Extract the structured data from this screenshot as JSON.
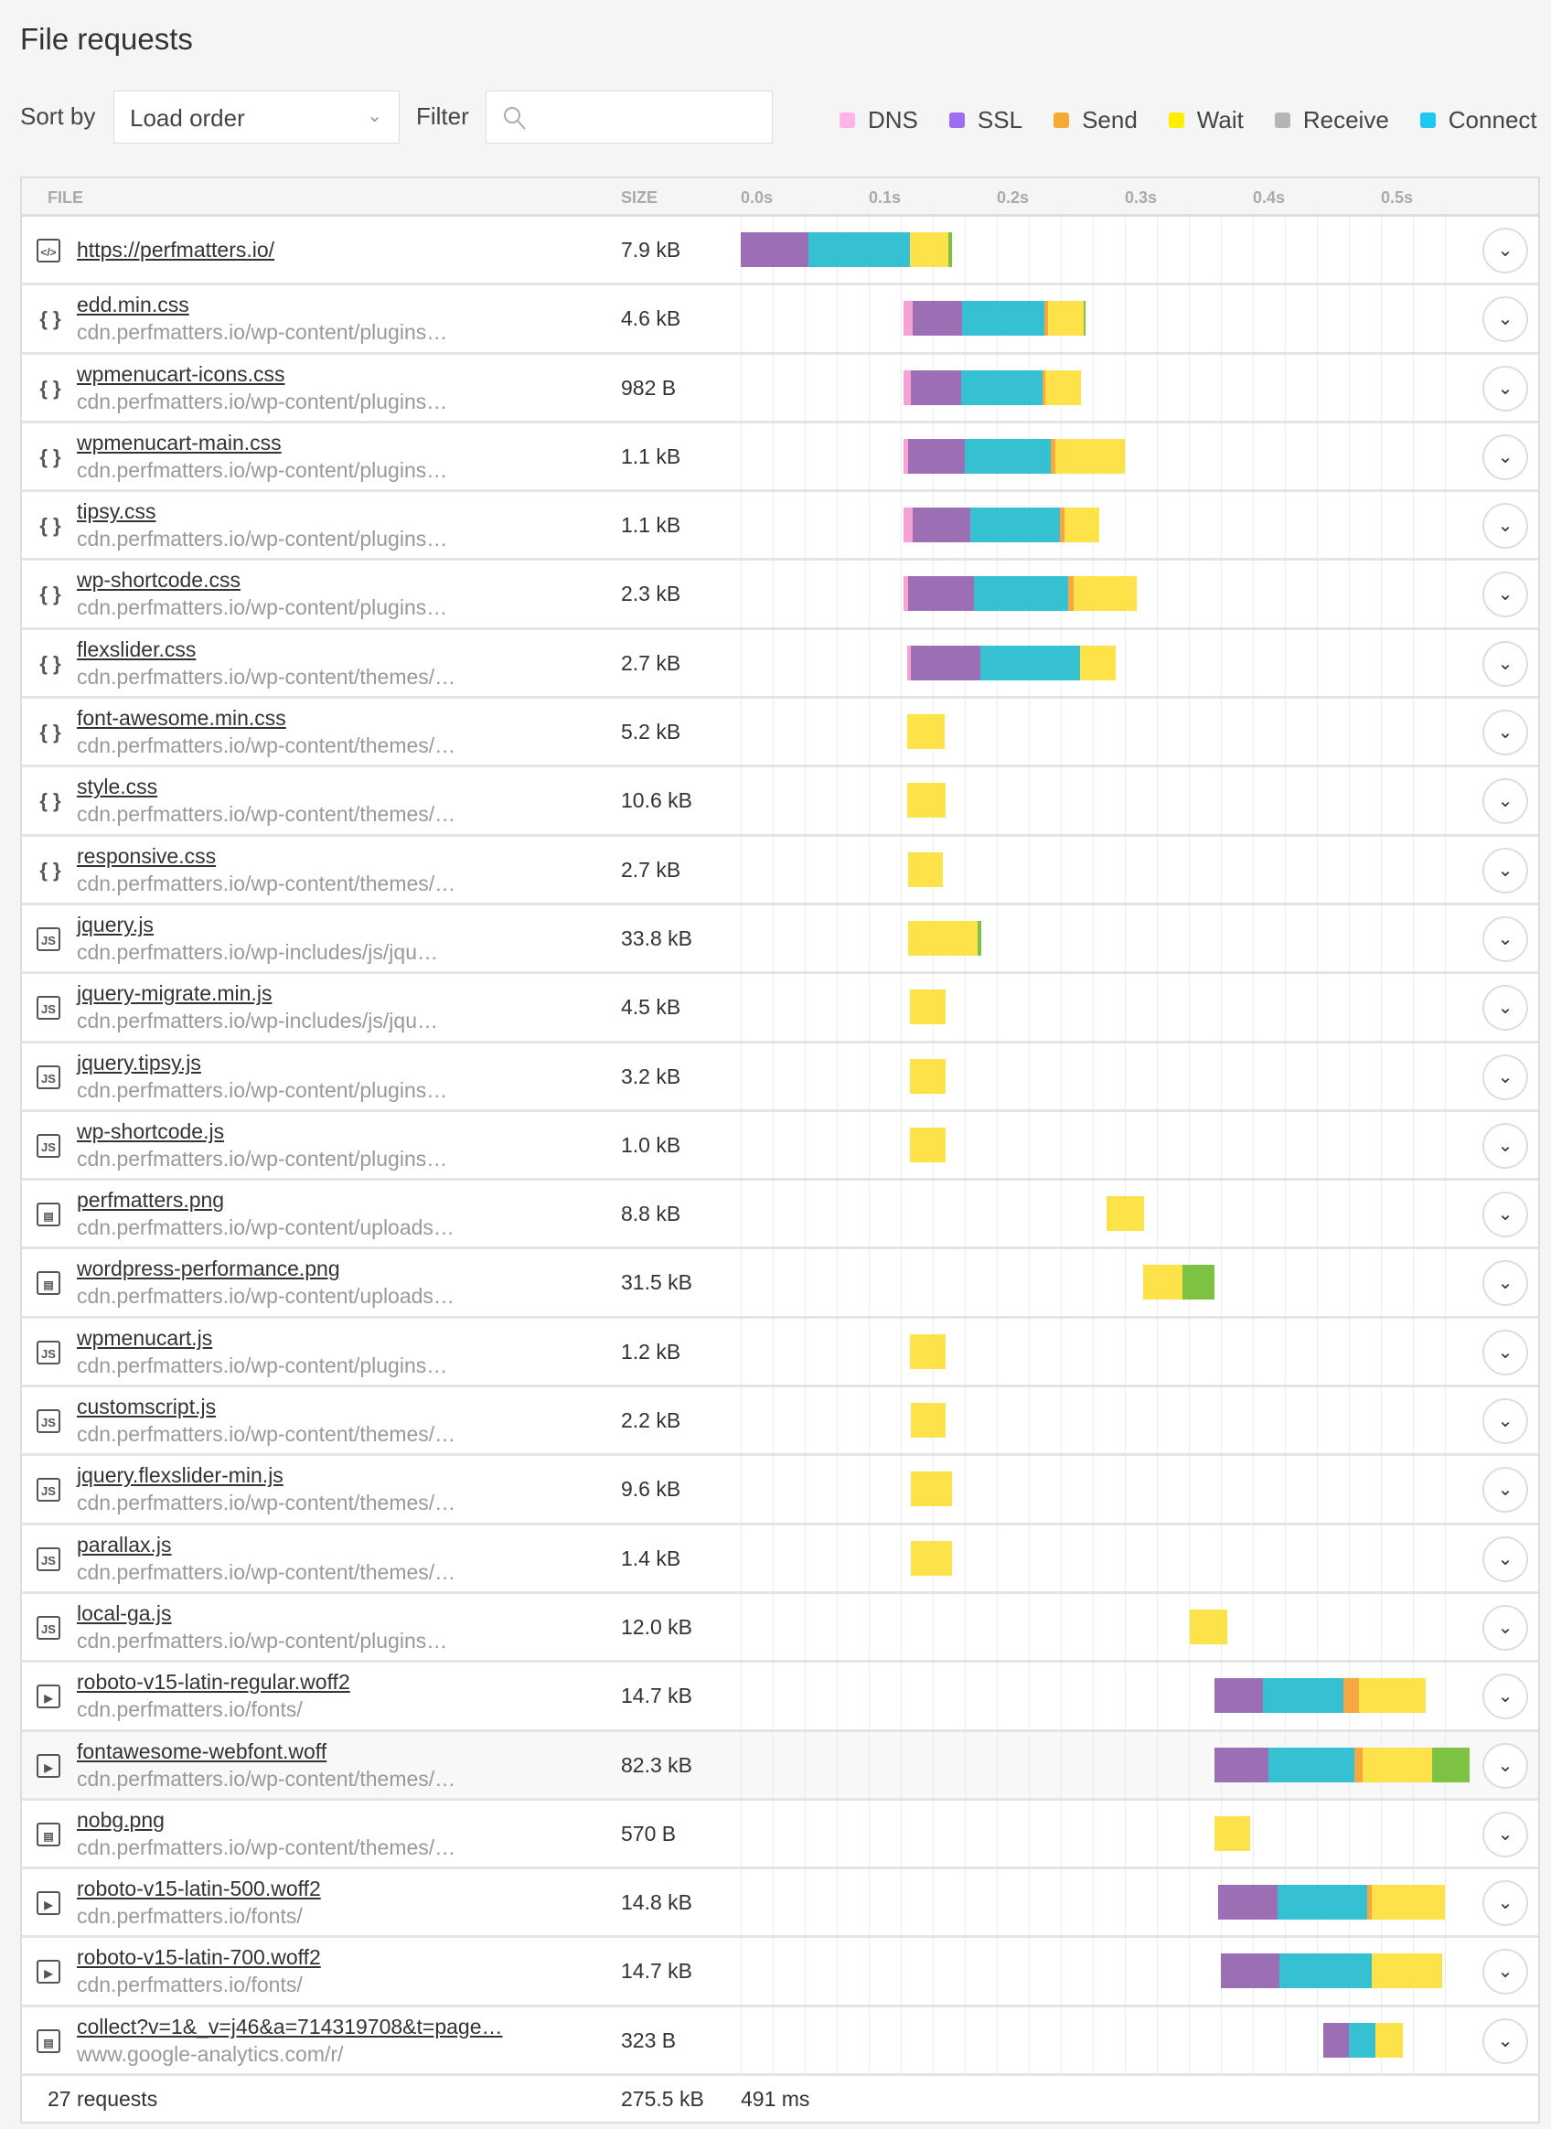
{
  "title": "File requests",
  "controls": {
    "sort_label": "Sort by",
    "sort_value": "Load order",
    "filter_label": "Filter",
    "filter_value": "",
    "filter_placeholder": ""
  },
  "legend": [
    {
      "label": "DNS",
      "color": "#ffb3e6"
    },
    {
      "label": "SSL",
      "color": "#9c6ff0"
    },
    {
      "label": "Send",
      "color": "#f7a935"
    },
    {
      "label": "Wait",
      "color": "#ffee00"
    },
    {
      "label": "Receive",
      "color": "#b5b5b5"
    },
    {
      "label": "Connect",
      "color": "#1ec8f0"
    }
  ],
  "bar_colors": {
    "dns": "#f5a3d4",
    "ssl": "#9c6fb4",
    "connect": "#35c1d1",
    "send": "#f5a742",
    "wait": "#fde24a",
    "receive": "#7dc242"
  },
  "columns": {
    "file": "FILE",
    "size": "SIZE"
  },
  "chart_data": {
    "type": "bar",
    "orientation": "horizontal-waterfall",
    "x_ticks": [
      "0.0s",
      "0.1s",
      "0.2s",
      "0.3s",
      "0.4s",
      "0.5s"
    ],
    "xlim": [
      0,
      0.574
    ],
    "grid": true
  },
  "rows": [
    {
      "name": "https://perfmatters.io/",
      "host": "",
      "size": "7.9 kB",
      "type": "html",
      "segments": [
        [
          "ssl",
          0,
          0.053
        ],
        [
          "connect",
          0.053,
          0.132
        ],
        [
          "wait",
          0.132,
          0.162
        ],
        [
          "receive",
          0.162,
          0.165
        ]
      ]
    },
    {
      "name": "edd.min.css",
      "host": "cdn.perfmatters.io/wp-content/plugins…",
      "size": "4.6 kB",
      "type": "css",
      "segments": [
        [
          "dns",
          0.127,
          0.134
        ],
        [
          "ssl",
          0.134,
          0.173
        ],
        [
          "connect",
          0.173,
          0.237
        ],
        [
          "send",
          0.237,
          0.24
        ],
        [
          "wait",
          0.24,
          0.268
        ],
        [
          "receive",
          0.268,
          0.269
        ]
      ]
    },
    {
      "name": "wpmenucart-icons.css",
      "host": "cdn.perfmatters.io/wp-content/plugins…",
      "size": "982 B",
      "type": "css",
      "segments": [
        [
          "dns",
          0.127,
          0.133
        ],
        [
          "ssl",
          0.133,
          0.172
        ],
        [
          "connect",
          0.172,
          0.236
        ],
        [
          "send",
          0.236,
          0.238
        ],
        [
          "wait",
          0.238,
          0.266
        ]
      ]
    },
    {
      "name": "wpmenucart-main.css",
      "host": "cdn.perfmatters.io/wp-content/plugins…",
      "size": "1.1 kB",
      "type": "css",
      "segments": [
        [
          "dns",
          0.127,
          0.131
        ],
        [
          "ssl",
          0.131,
          0.175
        ],
        [
          "connect",
          0.175,
          0.242
        ],
        [
          "send",
          0.242,
          0.246
        ],
        [
          "wait",
          0.246,
          0.3
        ]
      ]
    },
    {
      "name": "tipsy.css",
      "host": "cdn.perfmatters.io/wp-content/plugins…",
      "size": "1.1 kB",
      "type": "css",
      "segments": [
        [
          "dns",
          0.127,
          0.134
        ],
        [
          "ssl",
          0.134,
          0.179
        ],
        [
          "connect",
          0.179,
          0.249
        ],
        [
          "send",
          0.249,
          0.253
        ],
        [
          "wait",
          0.253,
          0.28
        ]
      ]
    },
    {
      "name": "wp-shortcode.css",
      "host": "cdn.perfmatters.io/wp-content/plugins…",
      "size": "2.3 kB",
      "type": "css",
      "segments": [
        [
          "dns",
          0.127,
          0.131
        ],
        [
          "ssl",
          0.131,
          0.182
        ],
        [
          "connect",
          0.182,
          0.256
        ],
        [
          "send",
          0.256,
          0.26
        ],
        [
          "wait",
          0.26,
          0.309
        ]
      ]
    },
    {
      "name": "flexslider.css",
      "host": "cdn.perfmatters.io/wp-content/themes/…",
      "size": "2.7 kB",
      "type": "css",
      "segments": [
        [
          "dns",
          0.13,
          0.133
        ],
        [
          "ssl",
          0.133,
          0.187
        ],
        [
          "connect",
          0.187,
          0.265
        ],
        [
          "wait",
          0.265,
          0.293
        ]
      ]
    },
    {
      "name": "font-awesome.min.css",
      "host": "cdn.perfmatters.io/wp-content/themes/…",
      "size": "5.2 kB",
      "type": "css",
      "segments": [
        [
          "wait",
          0.13,
          0.159
        ]
      ]
    },
    {
      "name": "style.css",
      "host": "cdn.perfmatters.io/wp-content/themes/…",
      "size": "10.6 kB",
      "type": "css",
      "segments": [
        [
          "wait",
          0.13,
          0.16
        ]
      ]
    },
    {
      "name": "responsive.css",
      "host": "cdn.perfmatters.io/wp-content/themes/…",
      "size": "2.7 kB",
      "type": "css",
      "segments": [
        [
          "wait",
          0.131,
          0.158
        ]
      ]
    },
    {
      "name": "jquery.js",
      "host": "cdn.perfmatters.io/wp-includes/js/jqu…",
      "size": "33.8 kB",
      "type": "js",
      "segments": [
        [
          "wait",
          0.131,
          0.185
        ],
        [
          "receive",
          0.185,
          0.188
        ]
      ]
    },
    {
      "name": "jquery-migrate.min.js",
      "host": "cdn.perfmatters.io/wp-includes/js/jqu…",
      "size": "4.5 kB",
      "type": "js",
      "segments": [
        [
          "wait",
          0.132,
          0.16
        ]
      ]
    },
    {
      "name": "jquery.tipsy.js",
      "host": "cdn.perfmatters.io/wp-content/plugins…",
      "size": "3.2 kB",
      "type": "js",
      "segments": [
        [
          "wait",
          0.132,
          0.16
        ]
      ]
    },
    {
      "name": "wp-shortcode.js",
      "host": "cdn.perfmatters.io/wp-content/plugins…",
      "size": "1.0 kB",
      "type": "js",
      "segments": [
        [
          "wait",
          0.132,
          0.16
        ]
      ]
    },
    {
      "name": "perfmatters.png",
      "host": "cdn.perfmatters.io/wp-content/uploads…",
      "size": "8.8 kB",
      "type": "image",
      "segments": [
        [
          "wait",
          0.286,
          0.315
        ]
      ]
    },
    {
      "name": "wordpress-performance.png",
      "host": "cdn.perfmatters.io/wp-content/uploads…",
      "size": "31.5 kB",
      "type": "image",
      "segments": [
        [
          "wait",
          0.314,
          0.345
        ],
        [
          "receive",
          0.345,
          0.37
        ]
      ]
    },
    {
      "name": "wpmenucart.js",
      "host": "cdn.perfmatters.io/wp-content/plugins…",
      "size": "1.2 kB",
      "type": "js",
      "segments": [
        [
          "wait",
          0.132,
          0.16
        ]
      ]
    },
    {
      "name": "customscript.js",
      "host": "cdn.perfmatters.io/wp-content/themes/…",
      "size": "2.2 kB",
      "type": "js",
      "segments": [
        [
          "wait",
          0.133,
          0.16
        ]
      ]
    },
    {
      "name": "jquery.flexslider-min.js",
      "host": "cdn.perfmatters.io/wp-content/themes/…",
      "size": "9.6 kB",
      "type": "js",
      "segments": [
        [
          "wait",
          0.133,
          0.165
        ]
      ]
    },
    {
      "name": "parallax.js",
      "host": "cdn.perfmatters.io/wp-content/themes/…",
      "size": "1.4 kB",
      "type": "js",
      "segments": [
        [
          "wait",
          0.133,
          0.165
        ]
      ]
    },
    {
      "name": "local-ga.js",
      "host": "cdn.perfmatters.io/wp-content/plugins…",
      "size": "12.0 kB",
      "type": "js",
      "segments": [
        [
          "wait",
          0.351,
          0.38
        ]
      ]
    },
    {
      "name": "roboto-v15-latin-regular.woff2",
      "host": "cdn.perfmatters.io/fonts/",
      "size": "14.7 kB",
      "type": "font",
      "segments": [
        [
          "ssl",
          0.37,
          0.408
        ],
        [
          "connect",
          0.408,
          0.471
        ],
        [
          "send",
          0.471,
          0.483
        ],
        [
          "wait",
          0.483,
          0.535
        ]
      ]
    },
    {
      "name": "fontawesome-webfont.woff",
      "host": "cdn.perfmatters.io/wp-content/themes/…",
      "size": "82.3 kB",
      "type": "font",
      "highlighted": true,
      "segments": [
        [
          "ssl",
          0.37,
          0.412
        ],
        [
          "connect",
          0.412,
          0.479
        ],
        [
          "send",
          0.479,
          0.486
        ],
        [
          "wait",
          0.486,
          0.54
        ],
        [
          "receive",
          0.54,
          0.569
        ]
      ]
    },
    {
      "name": "nobg.png",
      "host": "cdn.perfmatters.io/wp-content/themes/…",
      "size": "570 B",
      "type": "image",
      "segments": [
        [
          "wait",
          0.37,
          0.398
        ]
      ]
    },
    {
      "name": "roboto-v15-latin-500.woff2",
      "host": "cdn.perfmatters.io/fonts/",
      "size": "14.8 kB",
      "type": "font",
      "segments": [
        [
          "ssl",
          0.373,
          0.419
        ],
        [
          "connect",
          0.419,
          0.489
        ],
        [
          "send",
          0.489,
          0.493
        ],
        [
          "wait",
          0.493,
          0.55
        ]
      ]
    },
    {
      "name": "roboto-v15-latin-700.woff2",
      "host": "cdn.perfmatters.io/fonts/",
      "size": "14.7 kB",
      "type": "font",
      "segments": [
        [
          "ssl",
          0.375,
          0.421
        ],
        [
          "connect",
          0.421,
          0.493
        ],
        [
          "wait",
          0.493,
          0.548
        ]
      ]
    },
    {
      "name": "collect?v=1&_v=j46&a=714319708&t=page…",
      "host": "www.google-analytics.com/r/",
      "size": "323 B",
      "type": "image",
      "segments": [
        [
          "ssl",
          0.455,
          0.475
        ],
        [
          "connect",
          0.475,
          0.496
        ],
        [
          "wait",
          0.496,
          0.517
        ]
      ]
    }
  ],
  "footer": {
    "requests": "27 requests",
    "total_size": "275.5 kB",
    "total_time": "491 ms"
  }
}
